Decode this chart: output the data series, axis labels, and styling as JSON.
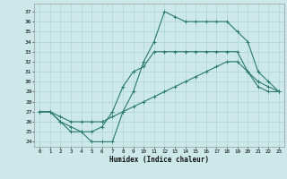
{
  "xlabel": "Humidex (Indice chaleur)",
  "background_color": "#cce8e8",
  "grid_color": "#aad4d4",
  "line_color": "#2a7a6a",
  "xlim": [
    -0.5,
    23.5
  ],
  "ylim": [
    23.5,
    37.8
  ],
  "xticks": [
    0,
    1,
    2,
    3,
    4,
    5,
    6,
    7,
    8,
    9,
    10,
    11,
    12,
    13,
    14,
    15,
    16,
    17,
    18,
    19,
    20,
    21,
    22,
    23
  ],
  "yticks": [
    24,
    25,
    26,
    27,
    28,
    29,
    30,
    31,
    32,
    33,
    34,
    35,
    36,
    37
  ],
  "series1_x": [
    0,
    1,
    2,
    3,
    4,
    5,
    6,
    7,
    8,
    9,
    10,
    11,
    12,
    13,
    14,
    15,
    16,
    17,
    18,
    19,
    20,
    21,
    22,
    23
  ],
  "series1_y": [
    27,
    27,
    26,
    25,
    25,
    24,
    24,
    24,
    27,
    29,
    32,
    34,
    37,
    36.5,
    36,
    36,
    36,
    36,
    36,
    35,
    34,
    31,
    30,
    29
  ],
  "series2_x": [
    0,
    1,
    2,
    3,
    4,
    5,
    6,
    7,
    8,
    9,
    10,
    11,
    12,
    13,
    14,
    15,
    16,
    17,
    18,
    19,
    20,
    21,
    22,
    23
  ],
  "series2_y": [
    27,
    27,
    26,
    25.5,
    25,
    25,
    25.5,
    27,
    29.5,
    31,
    31.5,
    33,
    33,
    33,
    33,
    33,
    33,
    33,
    33,
    33,
    31,
    29.5,
    29,
    29
  ],
  "series3_x": [
    0,
    1,
    2,
    3,
    4,
    5,
    6,
    7,
    8,
    9,
    10,
    11,
    12,
    13,
    14,
    15,
    16,
    17,
    18,
    19,
    20,
    21,
    22,
    23
  ],
  "series3_y": [
    27,
    27,
    26.5,
    26,
    26,
    26,
    26,
    26.5,
    27,
    27.5,
    28,
    28.5,
    29,
    29.5,
    30,
    30.5,
    31,
    31.5,
    32,
    32,
    31,
    30,
    29.5,
    29
  ]
}
